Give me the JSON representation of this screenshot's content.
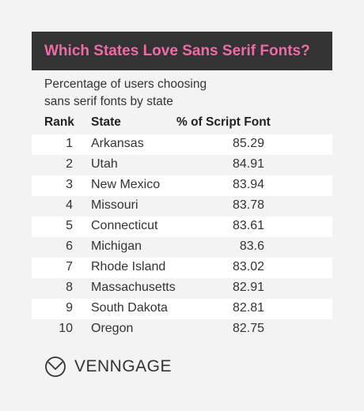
{
  "title": "Which States Love Sans Serif Fonts?",
  "subtitle_lines": [
    "Percentage of users choosing",
    "sans serif fonts by state"
  ],
  "columns": {
    "rank": "Rank",
    "state": "State",
    "value": "% of Script Font"
  },
  "logo_text": "VENNGAGE",
  "colors": {
    "banner": "#333333",
    "title": "#f06aa8",
    "stripe": "#ffffff",
    "background": "#f3f3f3"
  },
  "chart_data": {
    "type": "table",
    "title": "Which States Love Sans Serif Fonts?",
    "subtitle": "Percentage of users choosing sans serif fonts by state",
    "columns": [
      "Rank",
      "State",
      "% of Script Font"
    ],
    "rows": [
      {
        "rank": "1",
        "state": "Arkansas",
        "value": "85.29"
      },
      {
        "rank": "2",
        "state": "Utah",
        "value": "84.91"
      },
      {
        "rank": "3",
        "state": "New Mexico",
        "value": "83.94"
      },
      {
        "rank": "4",
        "state": "Missouri",
        "value": "83.78"
      },
      {
        "rank": "5",
        "state": "Connecticut",
        "value": "83.61"
      },
      {
        "rank": "6",
        "state": "Michigan",
        "value": "83.6"
      },
      {
        "rank": "7",
        "state": "Rhode Island",
        "value": "83.02"
      },
      {
        "rank": "8",
        "state": "Massachusetts",
        "value": "82.91"
      },
      {
        "rank": "9",
        "state": "South Dakota",
        "value": "82.81"
      },
      {
        "rank": "10",
        "state": "Oregon",
        "value": "82.75"
      }
    ]
  }
}
